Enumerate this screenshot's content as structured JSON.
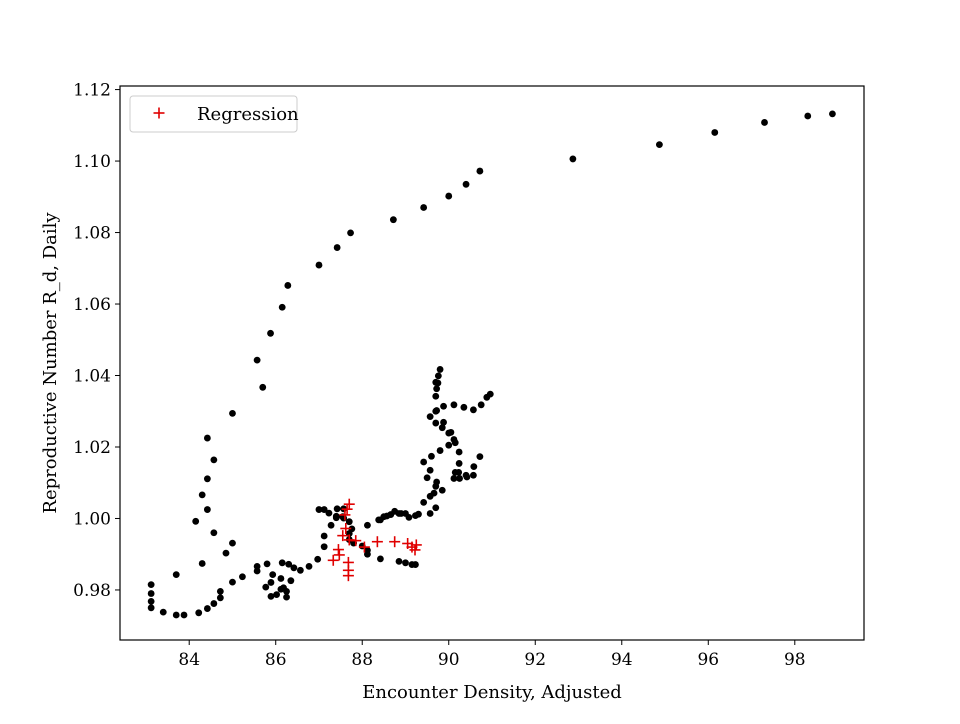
{
  "chart_data": {
    "type": "scatter",
    "title": "",
    "xlabel": "Encounter Density, Adjusted",
    "ylabel": "Reproductive Number R_d, Daily",
    "xlim": [
      82.4,
      99.6
    ],
    "ylim": [
      0.966,
      1.121
    ],
    "xticks": [
      84,
      86,
      88,
      90,
      92,
      94,
      96,
      98
    ],
    "yticks": [
      0.98,
      1.0,
      1.02,
      1.04,
      1.06,
      1.08,
      1.1,
      1.12
    ],
    "xtick_labels": [
      "84",
      "86",
      "88",
      "90",
      "92",
      "94",
      "96",
      "98"
    ],
    "ytick_labels": [
      "0.98",
      "1.00",
      "1.02",
      "1.04",
      "1.06",
      "1.08",
      "1.10",
      "1.12"
    ],
    "grid": false,
    "legend": {
      "position": "top-left",
      "entries": [
        "Regression"
      ]
    },
    "series": [
      {
        "name": "",
        "marker": "dot",
        "color": "#000000",
        "points": [
          [
            98.87,
            1.1132
          ],
          [
            98.3,
            1.1126
          ],
          [
            97.3,
            1.1108
          ],
          [
            96.15,
            1.108
          ],
          [
            94.87,
            1.1046
          ],
          [
            92.87,
            1.1006
          ],
          [
            90.72,
            1.0972
          ],
          [
            90.4,
            1.0935
          ],
          [
            90.0,
            1.0902
          ],
          [
            89.42,
            1.087
          ],
          [
            88.72,
            1.0836
          ],
          [
            87.73,
            1.0799
          ],
          [
            87.42,
            1.0758
          ],
          [
            87.0,
            1.0709
          ],
          [
            86.28,
            1.0652
          ],
          [
            86.15,
            1.0591
          ],
          [
            85.88,
            1.0518
          ],
          [
            85.57,
            1.0443
          ],
          [
            85.7,
            1.0367
          ],
          [
            85.0,
            1.0294
          ],
          [
            84.42,
            1.0225
          ],
          [
            84.57,
            1.0164
          ],
          [
            84.42,
            1.0111
          ],
          [
            84.3,
            1.0066
          ],
          [
            84.42,
            1.0025
          ],
          [
            84.15,
            0.9992
          ],
          [
            84.57,
            0.996
          ],
          [
            85.0,
            0.9931
          ],
          [
            84.85,
            0.9903
          ],
          [
            84.3,
            0.9874
          ],
          [
            83.7,
            0.9843
          ],
          [
            83.12,
            0.9815
          ],
          [
            83.12,
            0.979
          ],
          [
            83.12,
            0.9768
          ],
          [
            83.12,
            0.975
          ],
          [
            83.4,
            0.9738
          ],
          [
            83.7,
            0.973
          ],
          [
            83.88,
            0.973
          ],
          [
            84.22,
            0.9736
          ],
          [
            84.42,
            0.9748
          ],
          [
            84.57,
            0.9762
          ],
          [
            84.72,
            0.9778
          ],
          [
            84.72,
            0.9796
          ],
          [
            85.0,
            0.9822
          ],
          [
            85.23,
            0.9837
          ],
          [
            85.57,
            0.9853
          ],
          [
            85.57,
            0.9866
          ],
          [
            85.8,
            0.9873
          ],
          [
            86.15,
            0.9876
          ],
          [
            86.3,
            0.9872
          ],
          [
            86.42,
            0.9862
          ],
          [
            86.57,
            0.9855
          ],
          [
            86.77,
            0.9866
          ],
          [
            86.97,
            0.9886
          ],
          [
            87.12,
            0.9921
          ],
          [
            87.12,
            0.9951
          ],
          [
            87.28,
            0.9981
          ],
          [
            87.4,
            1.0002
          ],
          [
            87.55,
            1.0005
          ],
          [
            87.57,
            1.0027
          ],
          [
            87.42,
            1.0027
          ],
          [
            87.12,
            1.0025
          ],
          [
            87.0,
            1.0025
          ],
          [
            87.23,
            1.0015
          ],
          [
            87.4,
            1.0006
          ],
          [
            87.57,
            1.0001
          ],
          [
            87.7,
            0.9991
          ],
          [
            87.76,
            0.9971
          ],
          [
            87.7,
            0.9958
          ],
          [
            87.7,
            0.9941
          ],
          [
            87.8,
            0.9931
          ],
          [
            88.0,
            0.9923
          ],
          [
            88.12,
            0.9911
          ],
          [
            88.12,
            0.99
          ],
          [
            88.42,
            0.9887
          ],
          [
            88.85,
            0.988
          ],
          [
            89.0,
            0.9876
          ],
          [
            89.15,
            0.9871
          ],
          [
            89.23,
            0.9871
          ],
          [
            88.12,
            0.9981
          ],
          [
            88.42,
            0.9996
          ],
          [
            88.5,
            1.0005
          ],
          [
            88.66,
            1.0011
          ],
          [
            88.85,
            1.0014
          ],
          [
            89.0,
            1.0014
          ],
          [
            89.3,
            1.0012
          ],
          [
            89.57,
            1.0014
          ],
          [
            89.7,
            1.003
          ],
          [
            89.42,
            1.0045
          ],
          [
            89.57,
            1.0062
          ],
          [
            89.66,
            1.0071
          ],
          [
            89.85,
            1.0079
          ],
          [
            89.7,
            1.009
          ],
          [
            89.72,
            1.0102
          ],
          [
            89.5,
            1.0114
          ],
          [
            89.57,
            1.0135
          ],
          [
            89.42,
            1.0158
          ],
          [
            89.6,
            1.0174
          ],
          [
            89.8,
            1.019
          ],
          [
            90.0,
            1.0205
          ],
          [
            90.12,
            1.0221
          ],
          [
            90.05,
            1.0241
          ],
          [
            89.85,
            1.0254
          ],
          [
            89.7,
            1.0267
          ],
          [
            89.57,
            1.0285
          ],
          [
            89.7,
            1.03
          ],
          [
            89.88,
            1.0314
          ],
          [
            90.12,
            1.0318
          ],
          [
            90.35,
            1.0311
          ],
          [
            90.57,
            1.0304
          ],
          [
            90.75,
            1.0318
          ],
          [
            90.88,
            1.0339
          ],
          [
            90.96,
            1.0348
          ],
          [
            89.72,
            1.0363
          ],
          [
            89.7,
            1.0381
          ],
          [
            89.76,
            1.0399
          ],
          [
            89.8,
            1.0417
          ],
          [
            89.75,
            1.0379
          ],
          [
            89.7,
            1.0342
          ],
          [
            89.72,
            1.0302
          ],
          [
            89.88,
            1.0269
          ],
          [
            90.0,
            1.0239
          ],
          [
            90.15,
            1.0212
          ],
          [
            90.24,
            1.0186
          ],
          [
            90.24,
            1.0154
          ],
          [
            90.23,
            1.0129
          ],
          [
            90.25,
            1.0112
          ],
          [
            90.4,
            1.0121
          ],
          [
            90.58,
            1.0145
          ],
          [
            90.72,
            1.0173
          ],
          [
            90.15,
            1.0129
          ],
          [
            90.12,
            1.0112
          ],
          [
            90.42,
            1.0116
          ],
          [
            90.57,
            1.0121
          ],
          [
            89.23,
            1.0008
          ],
          [
            89.08,
            1.0003
          ],
          [
            88.9,
            1.0014
          ],
          [
            88.75,
            1.002
          ],
          [
            88.57,
            1.0007
          ],
          [
            88.38,
            0.9996
          ],
          [
            86.18,
            0.9806
          ],
          [
            86.02,
            0.9787
          ],
          [
            85.89,
            0.9782
          ],
          [
            86.12,
            0.9802
          ],
          [
            86.25,
            0.9796
          ],
          [
            86.25,
            0.978
          ],
          [
            86.35,
            0.9826
          ],
          [
            86.12,
            0.9832
          ],
          [
            85.93,
            0.9843
          ],
          [
            85.77,
            0.9808
          ],
          [
            85.89,
            0.9821
          ]
        ]
      },
      {
        "name": "Regression",
        "marker": "plus",
        "color": "#e00000",
        "points": [
          [
            87.7,
            1.004
          ],
          [
            87.65,
            1.0026
          ],
          [
            87.6,
            1.001
          ],
          [
            87.62,
            0.9972
          ],
          [
            87.55,
            0.9952
          ],
          [
            87.45,
            0.9913
          ],
          [
            87.47,
            0.9898
          ],
          [
            87.33,
            0.9883
          ],
          [
            87.68,
            0.9877
          ],
          [
            87.68,
            0.9855
          ],
          [
            87.68,
            0.984
          ],
          [
            87.85,
            0.9938
          ],
          [
            88.05,
            0.992
          ],
          [
            88.35,
            0.9935
          ],
          [
            88.75,
            0.9935
          ],
          [
            89.05,
            0.993
          ],
          [
            89.15,
            0.992
          ],
          [
            89.22,
            0.9912
          ],
          [
            89.25,
            0.9926
          ],
          [
            87.7,
            0.994
          ]
        ]
      }
    ]
  }
}
